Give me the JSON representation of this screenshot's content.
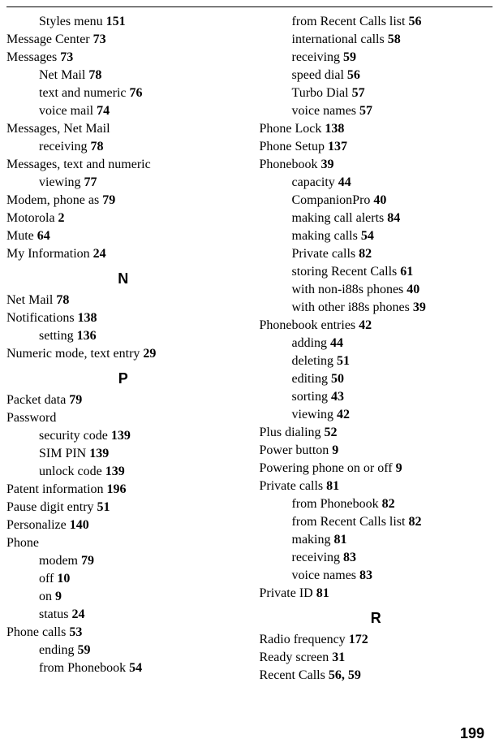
{
  "page_number": "199",
  "left": [
    {
      "lvl": 1,
      "t": "Styles menu",
      "p": "151"
    },
    {
      "lvl": 0,
      "t": "Message Center",
      "p": "73"
    },
    {
      "lvl": 0,
      "t": "Messages",
      "p": "73"
    },
    {
      "lvl": 1,
      "t": "Net Mail",
      "p": "78"
    },
    {
      "lvl": 1,
      "t": "text and numeric",
      "p": "76"
    },
    {
      "lvl": 1,
      "t": "voice mail",
      "p": "74"
    },
    {
      "lvl": 0,
      "t": "Messages, Net Mail",
      "p": ""
    },
    {
      "lvl": 1,
      "t": "receiving",
      "p": "78"
    },
    {
      "lvl": 0,
      "t": "Messages, text and numeric",
      "p": "",
      "wrap": true
    },
    {
      "lvl": 1,
      "t": "viewing",
      "p": "77"
    },
    {
      "lvl": 0,
      "t": "Modem, phone as",
      "p": "79"
    },
    {
      "lvl": 0,
      "t": "Motorola",
      "p": "2"
    },
    {
      "lvl": 0,
      "t": "Mute",
      "p": "64"
    },
    {
      "lvl": 0,
      "t": "My Information",
      "p": "24"
    },
    {
      "section": "N"
    },
    {
      "lvl": 0,
      "t": "Net Mail",
      "p": "78"
    },
    {
      "lvl": 0,
      "t": "Notifications",
      "p": "138"
    },
    {
      "lvl": 1,
      "t": "setting",
      "p": "136"
    },
    {
      "lvl": 0,
      "t": "Numeric mode, text entry",
      "p": "29"
    },
    {
      "section": "P"
    },
    {
      "lvl": 0,
      "t": "Packet data",
      "p": "79"
    },
    {
      "lvl": 0,
      "t": "Password",
      "p": ""
    },
    {
      "lvl": 1,
      "t": "security code",
      "p": "139"
    },
    {
      "lvl": 1,
      "t": "SIM PIN",
      "p": "139"
    },
    {
      "lvl": 1,
      "t": "unlock code",
      "p": "139"
    },
    {
      "lvl": 0,
      "t": "Patent information",
      "p": "196"
    },
    {
      "lvl": 0,
      "t": "Pause digit entry",
      "p": "51"
    },
    {
      "lvl": 0,
      "t": "Personalize",
      "p": "140"
    },
    {
      "lvl": 0,
      "t": "Phone",
      "p": ""
    },
    {
      "lvl": 1,
      "t": "modem",
      "p": "79"
    },
    {
      "lvl": 1,
      "t": "off",
      "p": "10"
    },
    {
      "lvl": 1,
      "t": "on",
      "p": "9"
    },
    {
      "lvl": 1,
      "t": "status",
      "p": "24"
    },
    {
      "lvl": 0,
      "t": "Phone calls",
      "p": "53"
    },
    {
      "lvl": 1,
      "t": "ending",
      "p": "59"
    },
    {
      "lvl": 1,
      "t": "from Phonebook",
      "p": "54"
    }
  ],
  "right": [
    {
      "lvl": 1,
      "t": "from Recent Calls list",
      "p": "56"
    },
    {
      "lvl": 1,
      "t": "international calls",
      "p": "58"
    },
    {
      "lvl": 1,
      "t": "receiving",
      "p": "59"
    },
    {
      "lvl": 1,
      "t": "speed dial",
      "p": "56"
    },
    {
      "lvl": 1,
      "t": "Turbo Dial",
      "p": "57"
    },
    {
      "lvl": 1,
      "t": "voice names",
      "p": "57"
    },
    {
      "lvl": 0,
      "t": "Phone Lock",
      "p": "138"
    },
    {
      "lvl": 0,
      "t": "Phone Setup",
      "p": "137"
    },
    {
      "lvl": 0,
      "t": "Phonebook",
      "p": "39"
    },
    {
      "lvl": 1,
      "t": "capacity",
      "p": "44"
    },
    {
      "lvl": 1,
      "t": "CompanionPro",
      "p": "40"
    },
    {
      "lvl": 1,
      "t": "making call alerts",
      "p": "84"
    },
    {
      "lvl": 1,
      "t": "making calls",
      "p": "54"
    },
    {
      "lvl": 1,
      "t": "Private calls",
      "p": "82"
    },
    {
      "lvl": 1,
      "t": "storing Recent Calls",
      "p": "61"
    },
    {
      "lvl": 1,
      "t": "with non-i88s phones",
      "p": "40"
    },
    {
      "lvl": 1,
      "t": "with other i88s phones",
      "p": "39"
    },
    {
      "lvl": 0,
      "t": "Phonebook entries",
      "p": "42"
    },
    {
      "lvl": 1,
      "t": "adding",
      "p": "44"
    },
    {
      "lvl": 1,
      "t": "deleting",
      "p": "51"
    },
    {
      "lvl": 1,
      "t": "editing",
      "p": "50"
    },
    {
      "lvl": 1,
      "t": "sorting",
      "p": "43"
    },
    {
      "lvl": 1,
      "t": "viewing",
      "p": "42"
    },
    {
      "lvl": 0,
      "t": "Plus dialing",
      "p": "52"
    },
    {
      "lvl": 0,
      "t": "Power button",
      "p": "9"
    },
    {
      "lvl": 0,
      "t": "Powering phone on or off",
      "p": "9"
    },
    {
      "lvl": 0,
      "t": "Private calls",
      "p": "81"
    },
    {
      "lvl": 1,
      "t": "from Phonebook",
      "p": "82"
    },
    {
      "lvl": 1,
      "t": "from Recent Calls list",
      "p": "82"
    },
    {
      "lvl": 1,
      "t": "making",
      "p": "81"
    },
    {
      "lvl": 1,
      "t": "receiving",
      "p": "83"
    },
    {
      "lvl": 1,
      "t": "voice names",
      "p": "83"
    },
    {
      "lvl": 0,
      "t": "Private ID",
      "p": "81"
    },
    {
      "section": "R"
    },
    {
      "lvl": 0,
      "t": "Radio frequency",
      "p": "172"
    },
    {
      "lvl": 0,
      "t": "Ready screen",
      "p": "31"
    },
    {
      "lvl": 0,
      "t": "Recent Calls",
      "p": "56",
      "extra": "59"
    }
  ]
}
